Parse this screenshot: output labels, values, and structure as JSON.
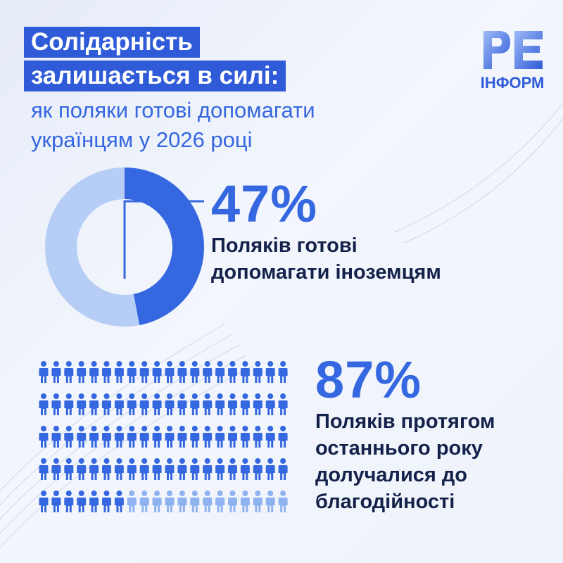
{
  "header": {
    "title_line1": "Солідарність",
    "title_line2": "залишається в силі:",
    "subtitle_line1": "як поляки готові допомагати",
    "subtitle_line2": "українцям у 2026 році"
  },
  "logo": {
    "letters": "PE",
    "caption": "ІНФОРМ"
  },
  "stat1": {
    "value": "47%",
    "line1": "Поляків готові",
    "line2": "допомагати іноземцям"
  },
  "stat2": {
    "value": "87%",
    "line1": "Поляків протягом",
    "line2": "останнього року",
    "line3": "долучалися до",
    "line4": "благодійності"
  },
  "colors": {
    "primary": "#3567e0",
    "light": "#b6cdf6",
    "dark_text": "#14214a"
  },
  "chart_data": [
    {
      "type": "pie",
      "style": "donut",
      "slices": [
        {
          "value": 47,
          "color": "#3567e0"
        },
        {
          "value": 53,
          "color": "#b6cdf6"
        }
      ]
    },
    {
      "type": "pictogram",
      "total": 100,
      "highlighted": 87,
      "colors": {
        "highlighted": "#3567e0",
        "rest": "#8fb2f0"
      }
    }
  ]
}
